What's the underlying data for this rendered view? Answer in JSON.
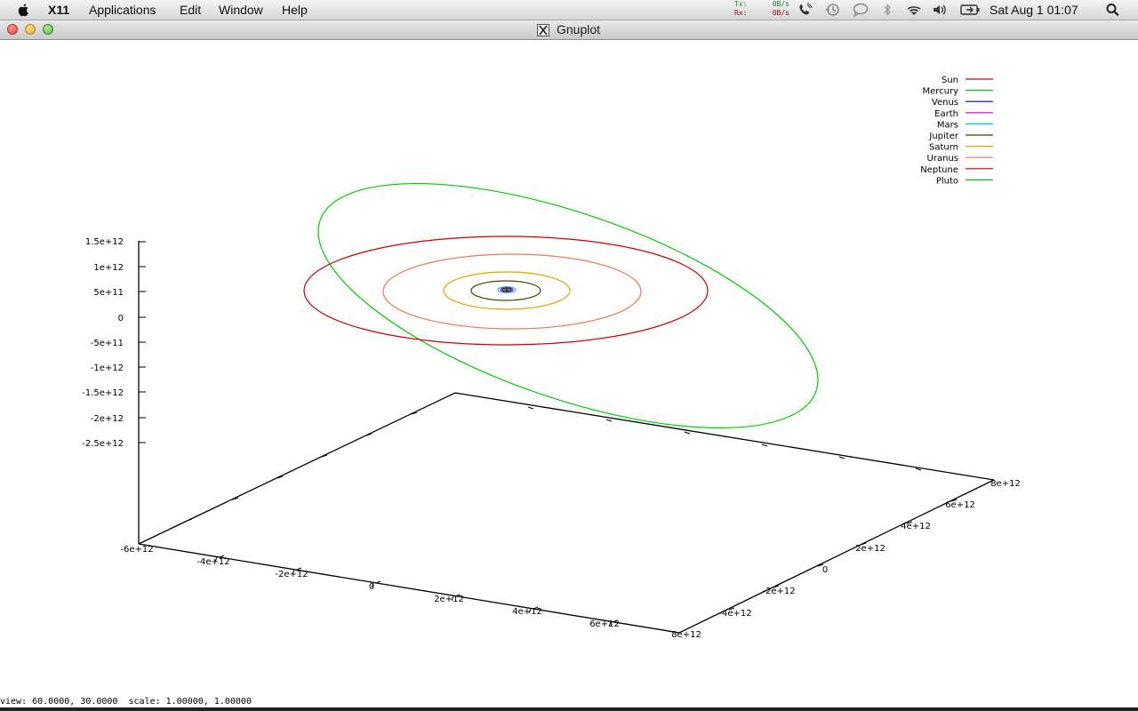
{
  "menubar": {
    "app": "X11",
    "items": [
      "Applications",
      "Edit",
      "Window",
      "Help"
    ],
    "net": {
      "tx_label": "Tx:",
      "tx_value": "0B/s",
      "rx_label": "Rx:",
      "rx_value": "0B/s"
    },
    "clock": "Sat Aug 1  01:07",
    "icons": [
      "apple-icon",
      "phone-icon",
      "time-machine-icon",
      "chat-icon",
      "bluetooth-icon",
      "wifi-icon",
      "volume-icon",
      "battery-icon",
      "spotlight-icon"
    ]
  },
  "window": {
    "title": "Gnuplot"
  },
  "legend": [
    {
      "name": "Sun",
      "color": "#cc0000"
    },
    {
      "name": "Mercury",
      "color": "#00cc00"
    },
    {
      "name": "Venus",
      "color": "#0000aa"
    },
    {
      "name": "Earth",
      "color": "#cc00cc"
    },
    {
      "name": "Mars",
      "color": "#00cccc"
    },
    {
      "name": "Jupiter",
      "color": "#444400"
    },
    {
      "name": "Saturn",
      "color": "#e6a000"
    },
    {
      "name": "Uranus",
      "color": "#ee7755"
    },
    {
      "name": "Neptune",
      "color": "#cc0000"
    },
    {
      "name": "Pluto",
      "color": "#00cc00"
    }
  ],
  "axes": {
    "z_ticks": [
      "1.5e+12",
      "1e+12",
      "5e+11",
      "0",
      "-5e+11",
      "-1e+12",
      "-1.5e+12",
      "-2e+12",
      "-2.5e+12"
    ],
    "x_ticks": [
      "-6e+12",
      "-4e+12",
      "-2e+12",
      "0",
      "2e+12",
      "4e+12",
      "6e+12",
      "8e+12"
    ],
    "y_ticks": [
      "-4e+12",
      "-2e+12",
      "0",
      "2e+12",
      "4e+12",
      "6e+12",
      "8e+12"
    ]
  },
  "status": "view: 60.0000, 30.0000  scale: 1.00000, 1.00000"
}
